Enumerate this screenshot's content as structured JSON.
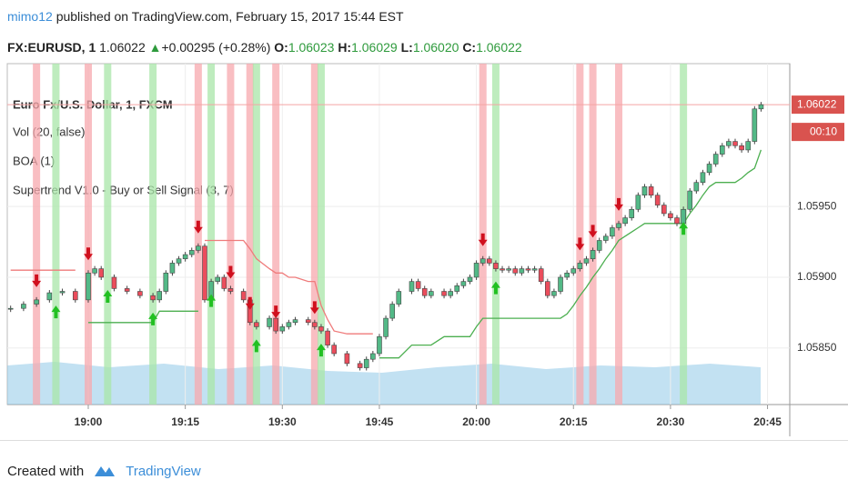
{
  "header": {
    "author": "mimo12",
    "published": "published on TradingView.com, February 15, 2017 15:44 EST",
    "symbol": "FX:EURUSD, 1",
    "last": "1.06022",
    "change": "+0.00295 (+0.28%)",
    "o_label": "O:",
    "o": "1.06023",
    "h_label": "H:",
    "h": "1.06029",
    "l_label": "L:",
    "l": "1.06020",
    "c_label": "C:",
    "c": "1.06022"
  },
  "legend": [
    "Euro Fx/U.S. Dollar, 1, FXCM",
    "Vol (20, false)",
    "BOA (1)",
    "Supertrend V1.0 - Buy or Sell Signal (3, 7)"
  ],
  "chart_data": {
    "type": "candlestick",
    "x": [
      "18:48",
      "18:50",
      "18:52",
      "18:54",
      "18:56",
      "18:58",
      "19:00",
      "19:01",
      "19:02",
      "19:04",
      "19:06",
      "19:08",
      "19:10",
      "19:11",
      "19:12",
      "19:13",
      "19:14",
      "19:15",
      "19:16",
      "19:17",
      "19:18",
      "19:19",
      "19:20",
      "19:21",
      "19:22",
      "19:24",
      "19:25",
      "19:26",
      "19:28",
      "19:29",
      "19:30",
      "19:31",
      "19:32",
      "19:34",
      "19:35",
      "19:36",
      "19:37",
      "19:38",
      "19:40",
      "19:42",
      "19:43",
      "19:44",
      "19:45",
      "19:46",
      "19:47",
      "19:48",
      "19:50",
      "19:51",
      "19:52",
      "19:53",
      "19:55",
      "19:56",
      "19:57",
      "19:58",
      "19:59",
      "20:00",
      "20:01",
      "20:02",
      "20:03",
      "20:04",
      "20:05",
      "20:06",
      "20:07",
      "20:08",
      "20:09",
      "20:10",
      "20:11",
      "20:12",
      "20:13",
      "20:14",
      "20:15",
      "20:16",
      "20:17",
      "20:18",
      "20:19",
      "20:20",
      "20:21",
      "20:22",
      "20:23",
      "20:24",
      "20:25",
      "20:26",
      "20:27",
      "20:28",
      "20:29",
      "20:30",
      "20:31",
      "20:32",
      "20:33",
      "20:34",
      "20:35",
      "20:36",
      "20:37",
      "20:38",
      "20:39",
      "20:40",
      "20:41",
      "20:42",
      "20:43",
      "20:44"
    ],
    "values": [
      1.05878,
      1.05881,
      1.05884,
      1.05889,
      1.0589,
      1.05884,
      1.05903,
      1.05906,
      1.059,
      1.05892,
      1.0589,
      1.05887,
      1.05884,
      1.0589,
      1.05903,
      1.0591,
      1.05913,
      1.05916,
      1.05919,
      1.05922,
      1.05884,
      1.05897,
      1.059,
      1.05892,
      1.0589,
      1.05884,
      1.05868,
      1.05865,
      1.05871,
      1.05862,
      1.05865,
      1.05868,
      1.0587,
      1.05868,
      1.05865,
      1.05862,
      1.05852,
      1.05846,
      1.05839,
      1.05836,
      1.05842,
      1.05846,
      1.05858,
      1.05871,
      1.05881,
      1.0589,
      1.05897,
      1.05892,
      1.05887,
      1.0589,
      1.05887,
      1.0589,
      1.05894,
      1.05897,
      1.059,
      1.0591,
      1.05913,
      1.0591,
      1.05906,
      1.05905,
      1.05906,
      1.05903,
      1.05906,
      1.05905,
      1.05906,
      1.05897,
      1.05887,
      1.0589,
      1.059,
      1.05903,
      1.05906,
      1.0591,
      1.05913,
      1.05919,
      1.05926,
      1.05929,
      1.05935,
      1.05938,
      1.05942,
      1.05948,
      1.05958,
      1.05964,
      1.05958,
      1.05951,
      1.05945,
      1.05942,
      1.05938,
      1.05948,
      1.05961,
      1.05967,
      1.05974,
      1.0598,
      1.05987,
      1.05993,
      1.05996,
      1.05993,
      1.0599,
      1.05996,
      1.06019,
      1.06022
    ],
    "up_color": "#53b987",
    "down_color": "#eb4d5c",
    "series": [
      {
        "color": "#ef7b7b",
        "values": [
          1.05905,
          1.05905,
          1.05905,
          1.05905,
          1.05905,
          1.05905,
          null,
          null,
          null,
          null,
          null,
          null,
          null,
          null,
          null,
          null,
          null,
          null,
          null,
          null,
          1.05926,
          1.05926,
          1.05926,
          1.05926,
          1.05926,
          1.05926,
          1.0592,
          1.05913,
          1.05906,
          1.05903,
          1.05903,
          1.059,
          1.059,
          1.05897,
          1.05897,
          1.0588,
          1.0587,
          1.05862,
          1.0586,
          1.0586,
          1.0586,
          1.0586,
          null,
          null,
          null,
          null,
          null,
          null,
          null,
          null,
          null,
          null,
          null,
          null,
          null,
          null,
          null,
          null,
          null,
          null,
          null,
          null,
          null,
          null,
          null,
          null,
          null,
          null,
          null,
          null,
          null,
          null,
          null,
          null,
          null,
          null,
          null,
          null,
          null,
          null,
          null,
          null,
          null,
          null,
          null,
          null,
          null,
          null,
          null,
          null,
          null,
          null,
          null,
          null,
          null,
          null,
          null,
          null,
          null,
          null
        ]
      },
      {
        "color": "#4caf50",
        "values": [
          null,
          null,
          null,
          null,
          null,
          null,
          1.05868,
          1.05868,
          1.05868,
          1.05868,
          1.05868,
          1.05868,
          1.05868,
          1.05876,
          1.05876,
          1.05876,
          1.05876,
          1.05876,
          1.05876,
          1.05876,
          null,
          null,
          null,
          null,
          null,
          null,
          null,
          null,
          null,
          null,
          null,
          null,
          null,
          null,
          null,
          null,
          null,
          null,
          null,
          null,
          null,
          null,
          1.05843,
          1.05843,
          1.05843,
          1.05843,
          1.05852,
          1.05852,
          1.05852,
          1.05852,
          1.05858,
          1.05858,
          1.05858,
          1.05858,
          1.05858,
          1.05865,
          1.05871,
          1.05871,
          1.05871,
          1.05871,
          1.05871,
          1.05871,
          1.05871,
          1.05871,
          1.05871,
          1.05871,
          1.05871,
          1.05871,
          1.05871,
          1.05874,
          1.0588,
          1.05887,
          1.05893,
          1.059,
          1.05906,
          1.05913,
          1.05919,
          1.05926,
          1.05929,
          1.05932,
          1.05935,
          1.05938,
          1.05938,
          1.05938,
          1.05938,
          1.05938,
          1.05938,
          1.05938,
          1.05945,
          1.05951,
          1.05958,
          1.05964,
          1.05967,
          1.05967,
          1.05967,
          1.05967,
          1.0597,
          1.05974,
          1.05977,
          1.0599
        ]
      }
    ],
    "sell_signals": [
      "18:52",
      "19:00",
      "19:17",
      "19:22",
      "19:25",
      "19:29",
      "19:35",
      "20:01",
      "20:16",
      "20:18",
      "20:22"
    ],
    "buy_signals": [
      "18:55",
      "19:03",
      "19:10",
      "19:19",
      "19:26",
      "19:36",
      "20:03",
      "20:32"
    ],
    "ylim": [
      1.0581,
      1.06051
    ],
    "yticks": [
      {
        "value": 1.0585,
        "label": "1.05850"
      },
      {
        "value": 1.059,
        "label": "1.05900"
      },
      {
        "value": 1.0595,
        "label": "1.05950"
      }
    ],
    "xticks": [
      "19:00",
      "19:15",
      "19:30",
      "19:45",
      "20:00",
      "20:15",
      "20:30",
      "20:45"
    ],
    "last_price": 1.06022,
    "countdown": "00:10",
    "grid": true
  },
  "footer": {
    "created": "Created with",
    "brand": "TradingView"
  }
}
